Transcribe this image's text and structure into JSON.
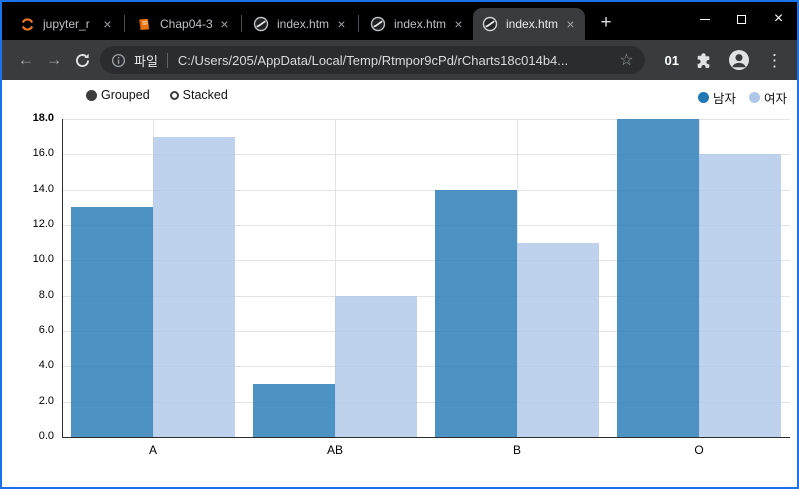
{
  "icons": {
    "close_tab": "×",
    "new_tab": "+",
    "back": "←",
    "forward": "→",
    "star": "☆",
    "menu_dots": "⋮",
    "window_close": "×"
  },
  "tabs": [
    {
      "title": "jupyter_r",
      "icon": "jupyter-icon",
      "active": false
    },
    {
      "title": "Chap04-3",
      "icon": "book-icon",
      "active": false
    },
    {
      "title": "index.htm",
      "icon": "globe-icon",
      "active": false
    },
    {
      "title": "index.htm",
      "icon": "globe-icon",
      "active": false
    },
    {
      "title": "index.htm",
      "icon": "globe-icon",
      "active": true
    }
  ],
  "toolbar": {
    "scheme_label": "파일",
    "url": "C:/Users/205/AppData/Local/Temp/Rtmpor9cPd/rCharts18c014b4...",
    "extension_badge": "01"
  },
  "chart_data": {
    "type": "bar",
    "title": "",
    "xlabel": "",
    "ylabel": "",
    "categories": [
      "A",
      "AB",
      "B",
      "O"
    ],
    "series": [
      {
        "name": "남자",
        "color": "#1f77b4",
        "values": [
          13,
          3,
          14,
          18
        ]
      },
      {
        "name": "여자",
        "color": "#aec7e8",
        "values": [
          17,
          8,
          11,
          16
        ]
      }
    ],
    "controls": [
      {
        "label": "Grouped",
        "selected": true
      },
      {
        "label": "Stacked",
        "selected": false
      }
    ],
    "ylim": [
      0,
      18
    ],
    "yticks": [
      0,
      2,
      4,
      6,
      8,
      10,
      12,
      14,
      16,
      18
    ],
    "ytick_labels": [
      "0.0",
      "2.0",
      "4.0",
      "6.0",
      "8.0",
      "10.0",
      "12.0",
      "14.0",
      "16.0",
      "18.0"
    ],
    "grid": true,
    "legend_position": "top-right",
    "bar_fill_opacity": 0.8
  }
}
